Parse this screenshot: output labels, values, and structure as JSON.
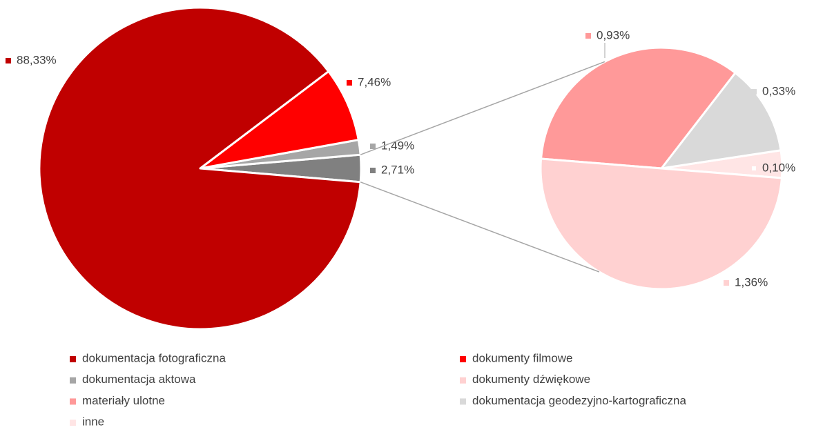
{
  "chart_data": {
    "type": "pie-of-pie",
    "main": {
      "names": [
        "dokumentacja fotograficzna",
        "dokumenty filmowe",
        "dokumentacja aktowa",
        null
      ],
      "values": [
        88.33,
        7.46,
        1.49,
        2.71
      ],
      "value_labels": [
        "88,33%",
        "7,46%",
        "1,49%",
        "2,71%"
      ],
      "colors": [
        "#c00000",
        "#ff0000",
        "#a6a6a6",
        "#808080"
      ]
    },
    "secondary": {
      "names": [
        "dokumenty dźwiękowe",
        "materiały ulotne",
        "dokumentacja geodezyjno-kartograficzna",
        "inne"
      ],
      "values": [
        1.36,
        0.93,
        0.33,
        0.1
      ],
      "value_labels": [
        "1,36%",
        "0,93%",
        "0,33%",
        "0,10%"
      ],
      "colors": [
        "#ffd1d1",
        "#ff9999",
        "#d9d9d9",
        "#ffe5e5"
      ]
    }
  }
}
